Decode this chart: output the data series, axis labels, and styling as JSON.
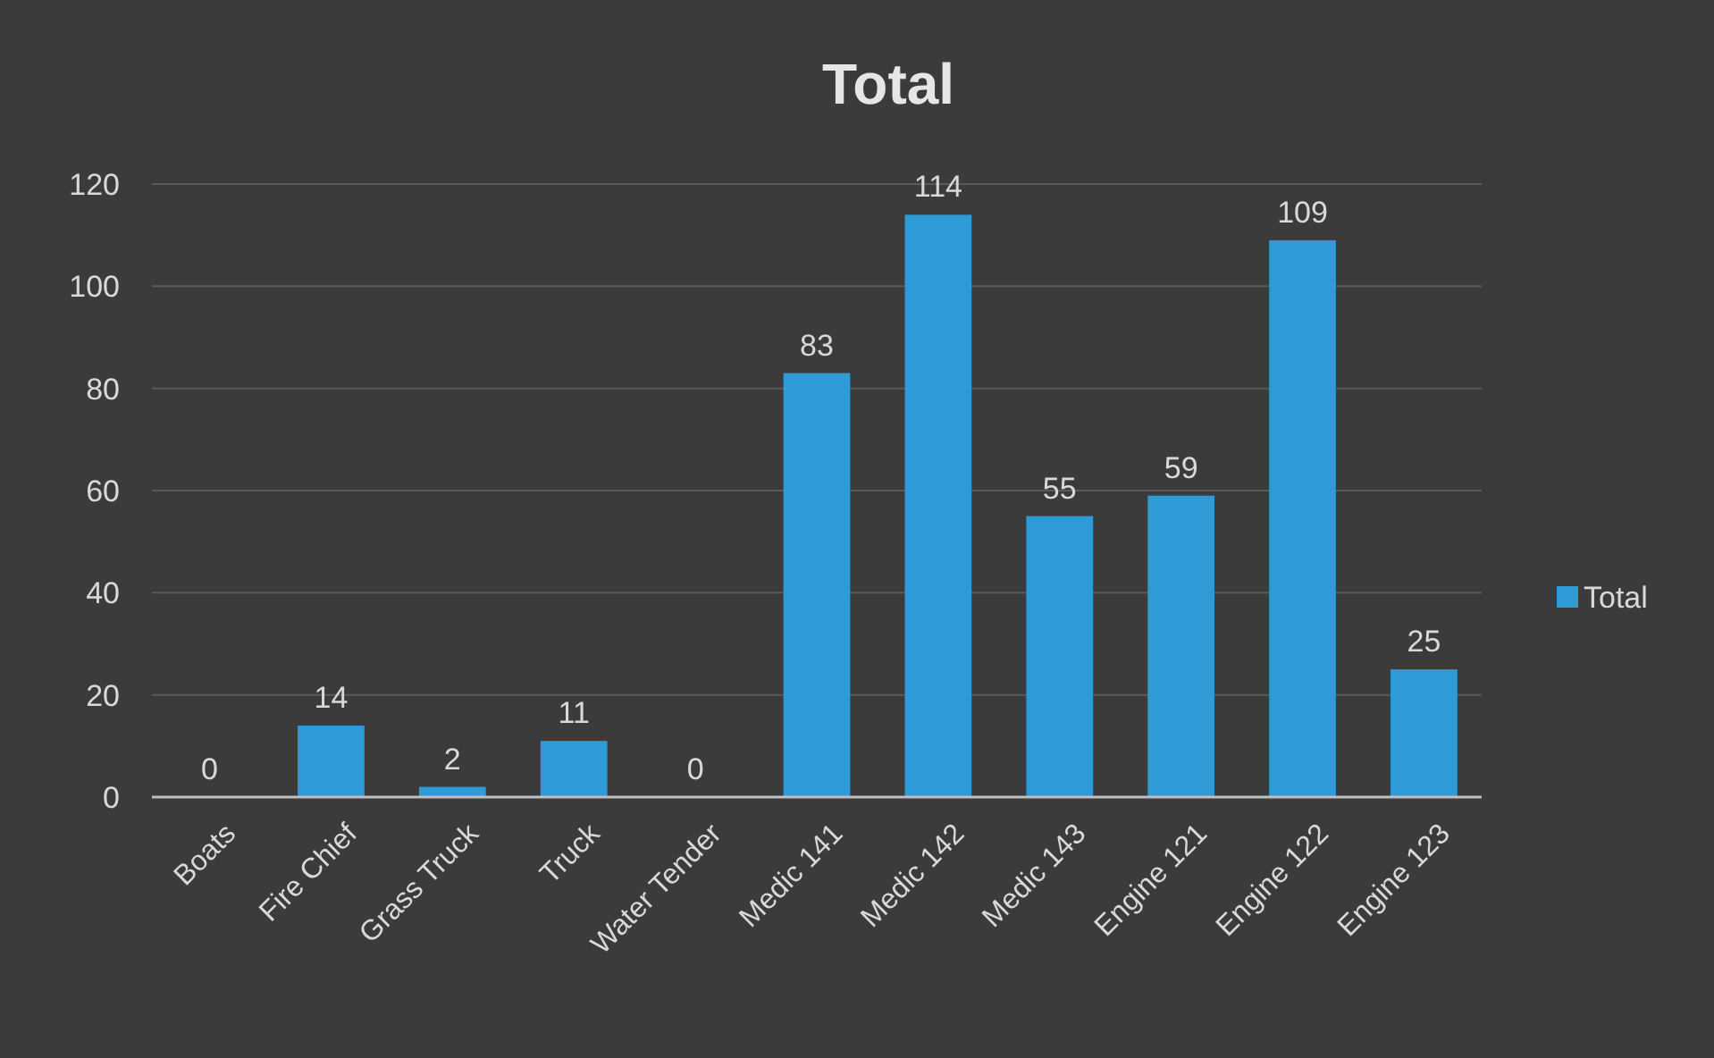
{
  "chart_data": {
    "type": "bar",
    "title": "Total",
    "categories": [
      "Boats",
      "Fire Chief",
      "Grass Truck",
      "Truck",
      "Water Tender",
      "Medic 141",
      "Medic 142",
      "Medic 143",
      "Engine 121",
      "Engine 122",
      "Engine 123"
    ],
    "series": [
      {
        "name": "Total",
        "color": "#2e9ad6",
        "values": [
          0,
          14,
          2,
          11,
          0,
          83,
          114,
          55,
          59,
          109,
          25
        ]
      }
    ],
    "ylim": [
      0,
      120
    ],
    "yticks": [
      0,
      20,
      40,
      60,
      80,
      100,
      120
    ],
    "grid": "y",
    "legend": "right",
    "data_labels": true
  }
}
